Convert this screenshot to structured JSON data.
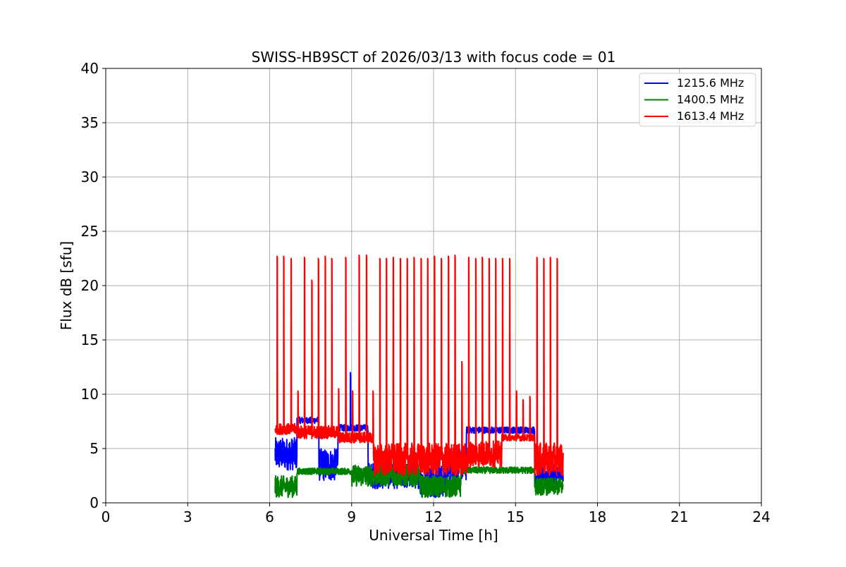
{
  "chart_data": {
    "type": "line",
    "title": "SWISS-HB9SCT of 2026/03/13 with focus code = 01",
    "xlabel": "Universal Time [h]",
    "ylabel": "Flux dB [sfu]",
    "xlim": [
      0,
      24
    ],
    "ylim": [
      0,
      40
    ],
    "xticks": [
      0,
      3,
      6,
      9,
      12,
      15,
      18,
      21,
      24
    ],
    "yticks": [
      0,
      5,
      10,
      15,
      20,
      25,
      30,
      35,
      40
    ],
    "grid": true,
    "legend_position": "top-right",
    "data_span_hours": [
      6.2,
      16.75
    ],
    "series": [
      {
        "name": "1215.6 MHz",
        "color": "#0000ff",
        "baseline_segments": [
          {
            "x": [
              6.2,
              7.0
            ],
            "level": 4.5,
            "noise": 1.5
          },
          {
            "x": [
              7.0,
              7.8
            ],
            "level": 7.6,
            "noise": 0.3
          },
          {
            "x": [
              7.8,
              8.5
            ],
            "level": 3.5,
            "noise": 1.5
          },
          {
            "x": [
              8.5,
              9.6
            ],
            "level": 6.9,
            "noise": 0.3
          },
          {
            "x": [
              9.6,
              11.5
            ],
            "level": 2.5,
            "noise": 1.2
          },
          {
            "x": [
              11.5,
              12.5
            ],
            "level": 2.0,
            "noise": 1.5
          },
          {
            "x": [
              12.5,
              13.2
            ],
            "level": 3.5,
            "noise": 1.5
          },
          {
            "x": [
              13.2,
              15.7
            ],
            "level": 6.7,
            "noise": 0.3
          },
          {
            "x": [
              15.7,
              16.75
            ],
            "level": 2.5,
            "noise": 1.0
          }
        ],
        "spikes": [
          {
            "x": 8.95,
            "y": 12.0
          }
        ]
      },
      {
        "name": "1400.5 MHz",
        "color": "#008000",
        "baseline_segments": [
          {
            "x": [
              6.2,
              7.0
            ],
            "level": 1.5,
            "noise": 1.0
          },
          {
            "x": [
              7.0,
              9.0
            ],
            "level": 2.9,
            "noise": 0.3
          },
          {
            "x": [
              9.0,
              11.5
            ],
            "level": 2.5,
            "noise": 1.0
          },
          {
            "x": [
              11.5,
              13.0
            ],
            "level": 1.5,
            "noise": 1.0
          },
          {
            "x": [
              13.0,
              15.7
            ],
            "level": 3.0,
            "noise": 0.3
          },
          {
            "x": [
              15.7,
              16.75
            ],
            "level": 1.5,
            "noise": 0.8
          }
        ],
        "spikes": []
      },
      {
        "name": "1613.4 MHz",
        "color": "#ff0000",
        "baseline_segments": [
          {
            "x": [
              6.2,
              7.0
            ],
            "level": 6.8,
            "noise": 0.5
          },
          {
            "x": [
              7.0,
              8.5
            ],
            "level": 6.5,
            "noise": 0.6
          },
          {
            "x": [
              8.5,
              9.8
            ],
            "level": 6.0,
            "noise": 0.5
          },
          {
            "x": [
              9.8,
              13.3
            ],
            "level": 4.0,
            "noise": 1.5
          },
          {
            "x": [
              13.3,
              14.5
            ],
            "level": 4.5,
            "noise": 1.2
          },
          {
            "x": [
              14.5,
              15.7
            ],
            "level": 6.0,
            "noise": 0.3
          },
          {
            "x": [
              15.7,
              16.75
            ],
            "level": 4.0,
            "noise": 1.5
          }
        ],
        "spikes": [
          {
            "x": 6.27,
            "y": 22.7
          },
          {
            "x": 6.51,
            "y": 22.7
          },
          {
            "x": 6.78,
            "y": 22.5
          },
          {
            "x": 7.03,
            "y": 10.3
          },
          {
            "x": 7.27,
            "y": 22.6
          },
          {
            "x": 7.54,
            "y": 20.5
          },
          {
            "x": 7.78,
            "y": 22.5
          },
          {
            "x": 8.03,
            "y": 22.7
          },
          {
            "x": 8.27,
            "y": 22.5
          },
          {
            "x": 8.52,
            "y": 10.5
          },
          {
            "x": 8.78,
            "y": 22.6
          },
          {
            "x": 9.03,
            "y": 10.3
          },
          {
            "x": 9.27,
            "y": 22.8
          },
          {
            "x": 9.54,
            "y": 22.8
          },
          {
            "x": 9.78,
            "y": 10.3
          },
          {
            "x": 10.03,
            "y": 22.5
          },
          {
            "x": 10.27,
            "y": 22.5
          },
          {
            "x": 10.52,
            "y": 22.6
          },
          {
            "x": 10.78,
            "y": 22.5
          },
          {
            "x": 11.03,
            "y": 22.5
          },
          {
            "x": 11.28,
            "y": 22.6
          },
          {
            "x": 11.54,
            "y": 22.5
          },
          {
            "x": 11.78,
            "y": 22.5
          },
          {
            "x": 12.03,
            "y": 22.7
          },
          {
            "x": 12.28,
            "y": 22.5
          },
          {
            "x": 12.54,
            "y": 22.7
          },
          {
            "x": 12.78,
            "y": 22.8
          },
          {
            "x": 13.03,
            "y": 13.0
          },
          {
            "x": 13.28,
            "y": 22.6
          },
          {
            "x": 13.54,
            "y": 22.5
          },
          {
            "x": 13.78,
            "y": 22.6
          },
          {
            "x": 14.03,
            "y": 22.5
          },
          {
            "x": 14.27,
            "y": 22.5
          },
          {
            "x": 14.52,
            "y": 22.5
          },
          {
            "x": 14.78,
            "y": 22.5
          },
          {
            "x": 15.03,
            "y": 10.3
          },
          {
            "x": 15.27,
            "y": 9.5
          },
          {
            "x": 15.52,
            "y": 9.8
          },
          {
            "x": 15.78,
            "y": 22.6
          },
          {
            "x": 16.03,
            "y": 22.5
          },
          {
            "x": 16.27,
            "y": 22.6
          },
          {
            "x": 16.52,
            "y": 22.5
          }
        ]
      }
    ]
  }
}
